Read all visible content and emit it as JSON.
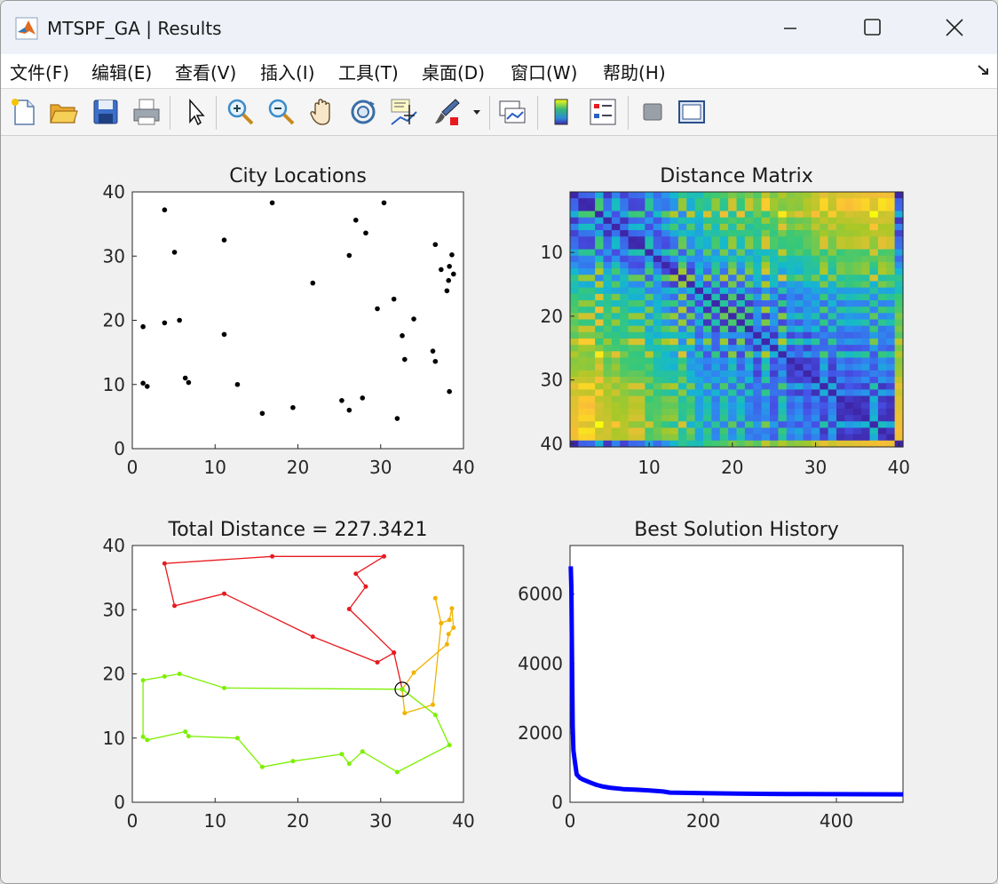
{
  "window": {
    "title": "MTSPF_GA | Results"
  },
  "menubar": {
    "items": [
      {
        "label": "文件(F)"
      },
      {
        "label": "编辑(E)"
      },
      {
        "label": "查看(V)"
      },
      {
        "label": "插入(I)"
      },
      {
        "label": "工具(T)"
      },
      {
        "label": "桌面(D)"
      },
      {
        "label": "窗口(W)"
      },
      {
        "label": "帮助(H)"
      }
    ]
  },
  "toolbar": {
    "buttons": [
      "new-figure-icon",
      "open-file-icon",
      "save-icon",
      "print-icon",
      "pointer-icon",
      "zoom-in-icon",
      "zoom-out-icon",
      "pan-hand-icon",
      "rotate-3d-icon",
      "data-cursor-icon",
      "brush-icon",
      "dropdown-arrow-icon",
      "link-plot-icon",
      "colorbar-icon",
      "legend-icon",
      "hide-plot-tools-icon",
      "show-plot-tools-icon"
    ]
  },
  "chart_data": [
    {
      "type": "scatter",
      "title": "City Locations",
      "xlim": [
        0,
        40
      ],
      "ylim": [
        0,
        40
      ],
      "xticks": [
        "0",
        "10",
        "20",
        "30",
        "40"
      ],
      "yticks": [
        "0",
        "10",
        "20",
        "30",
        "40"
      ],
      "points": [
        [
          1.3,
          19.0
        ],
        [
          1.3,
          10.2
        ],
        [
          1.8,
          9.7
        ],
        [
          3.9,
          37.2
        ],
        [
          3.9,
          19.6
        ],
        [
          5.1,
          30.6
        ],
        [
          5.7,
          20.0
        ],
        [
          6.4,
          11.0
        ],
        [
          6.8,
          10.3
        ],
        [
          11.1,
          32.5
        ],
        [
          11.1,
          17.8
        ],
        [
          12.7,
          10.0
        ],
        [
          15.7,
          5.5
        ],
        [
          16.9,
          38.3
        ],
        [
          19.4,
          6.4
        ],
        [
          21.8,
          25.8
        ],
        [
          25.3,
          7.5
        ],
        [
          26.2,
          30.1
        ],
        [
          26.2,
          6.0
        ],
        [
          27.0,
          35.6
        ],
        [
          27.8,
          7.9
        ],
        [
          28.2,
          33.6
        ],
        [
          29.6,
          21.8
        ],
        [
          30.4,
          38.3
        ],
        [
          31.6,
          23.3
        ],
        [
          32.0,
          4.7
        ],
        [
          32.6,
          17.6
        ],
        [
          32.9,
          13.9
        ],
        [
          34.0,
          20.2
        ],
        [
          36.3,
          15.2
        ],
        [
          36.6,
          31.8
        ],
        [
          36.6,
          13.6
        ],
        [
          37.3,
          27.9
        ],
        [
          38.0,
          24.6
        ],
        [
          38.2,
          26.2
        ],
        [
          38.3,
          28.4
        ],
        [
          38.3,
          8.9
        ],
        [
          38.6,
          30.2
        ],
        [
          38.8,
          27.2
        ]
      ]
    },
    {
      "type": "heatmap",
      "title": "Distance Matrix",
      "size": 40,
      "xticks": [
        "10",
        "20",
        "30",
        "40"
      ],
      "yticks": [
        "10",
        "20",
        "30",
        "40"
      ],
      "colormap": "parula"
    },
    {
      "type": "line",
      "title": "Total Distance = 227.3421",
      "xlim": [
        0,
        40
      ],
      "ylim": [
        0,
        40
      ],
      "xticks": [
        "0",
        "10",
        "20",
        "30",
        "40"
      ],
      "yticks": [
        "0",
        "10",
        "20",
        "30",
        "40"
      ],
      "depot": [
        32.6,
        17.6
      ],
      "routes": [
        {
          "color": "#e8191e",
          "points": [
            [
              32.6,
              17.6
            ],
            [
              31.6,
              23.3
            ],
            [
              29.6,
              21.8
            ],
            [
              21.8,
              25.8
            ],
            [
              11.1,
              32.5
            ],
            [
              5.1,
              30.6
            ],
            [
              3.9,
              37.2
            ],
            [
              16.9,
              38.3
            ],
            [
              30.4,
              38.3
            ],
            [
              27.0,
              35.6
            ],
            [
              28.2,
              33.6
            ],
            [
              26.2,
              30.1
            ],
            [
              31.6,
              23.3
            ],
            [
              32.6,
              17.6
            ]
          ]
        },
        {
          "color": "#f0b300",
          "points": [
            [
              32.6,
              17.6
            ],
            [
              34.0,
              20.2
            ],
            [
              38.0,
              24.6
            ],
            [
              38.2,
              26.2
            ],
            [
              38.8,
              27.2
            ],
            [
              38.6,
              30.2
            ],
            [
              38.3,
              28.4
            ],
            [
              37.3,
              27.9
            ],
            [
              36.6,
              31.8
            ],
            [
              37.3,
              27.9
            ],
            [
              36.3,
              15.2
            ],
            [
              32.9,
              13.9
            ],
            [
              32.6,
              17.6
            ]
          ]
        },
        {
          "color": "#7cf000",
          "points": [
            [
              32.6,
              17.6
            ],
            [
              11.1,
              17.8
            ],
            [
              5.7,
              20.0
            ],
            [
              3.9,
              19.6
            ],
            [
              1.3,
              19.0
            ],
            [
              1.3,
              10.2
            ],
            [
              1.8,
              9.7
            ],
            [
              6.4,
              11.0
            ],
            [
              6.8,
              10.3
            ],
            [
              12.7,
              10.0
            ],
            [
              15.7,
              5.5
            ],
            [
              19.4,
              6.4
            ],
            [
              25.3,
              7.5
            ],
            [
              26.2,
              6.0
            ],
            [
              27.8,
              7.9
            ],
            [
              32.0,
              4.7
            ],
            [
              38.3,
              8.9
            ],
            [
              36.6,
              13.6
            ],
            [
              32.6,
              17.6
            ]
          ]
        }
      ]
    },
    {
      "type": "line",
      "title": "Best Solution History",
      "xlim": [
        0,
        500
      ],
      "ylim": [
        0,
        7400
      ],
      "xticks": [
        "0",
        "200",
        "400"
      ],
      "yticks": [
        "0",
        "2000",
        "4000",
        "6000"
      ],
      "color": "#0000ff",
      "x": [
        1,
        2,
        3,
        4,
        5,
        7,
        10,
        15,
        20,
        30,
        40,
        50,
        60,
        80,
        100,
        120,
        140,
        150,
        200,
        250,
        300,
        350,
        400,
        450,
        500
      ],
      "y": [
        6800,
        6200,
        4000,
        2200,
        1500,
        1200,
        800,
        700,
        650,
        570,
        500,
        450,
        420,
        380,
        360,
        340,
        310,
        280,
        260,
        250,
        240,
        235,
        232,
        230,
        227
      ]
    }
  ]
}
